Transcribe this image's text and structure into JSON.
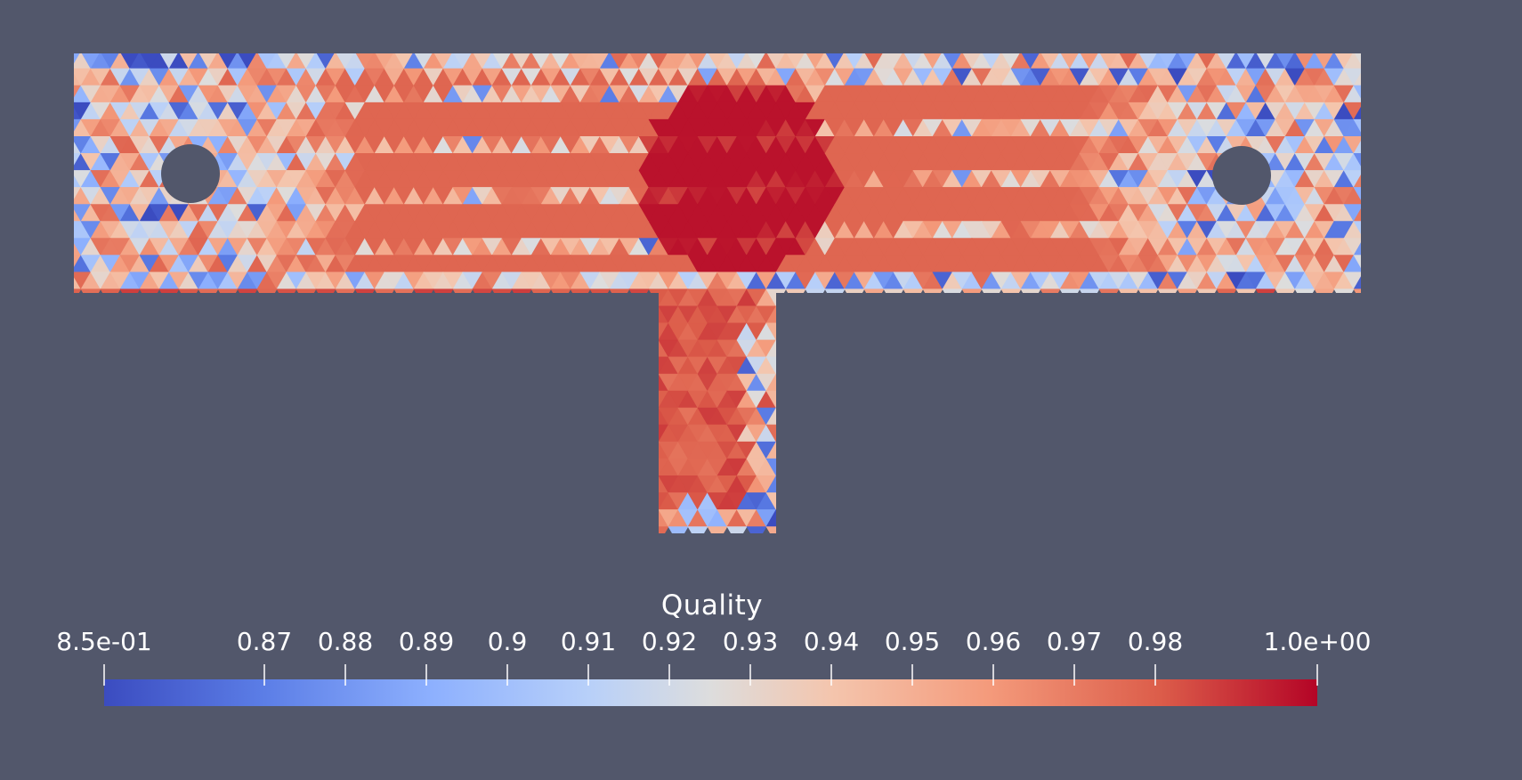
{
  "colorbar": {
    "title": "Quality",
    "min_label": "8.5e-01",
    "max_label": "1.0e+00",
    "ticks": [
      "0.87",
      "0.88",
      "0.89",
      "0.9",
      "0.91",
      "0.92",
      "0.93",
      "0.94",
      "0.95",
      "0.96",
      "0.97",
      "0.98"
    ],
    "range": [
      0.85,
      1.0
    ],
    "colormap": "coolwarm",
    "colors": {
      "low": "#3b4cc0",
      "mid": "#dddddd",
      "high": "#b40426"
    }
  },
  "scene": {
    "background": "#52576b",
    "shape": "T-shaped bracket with two circular holes",
    "representation": "surface with triangle cells colored by Quality"
  }
}
